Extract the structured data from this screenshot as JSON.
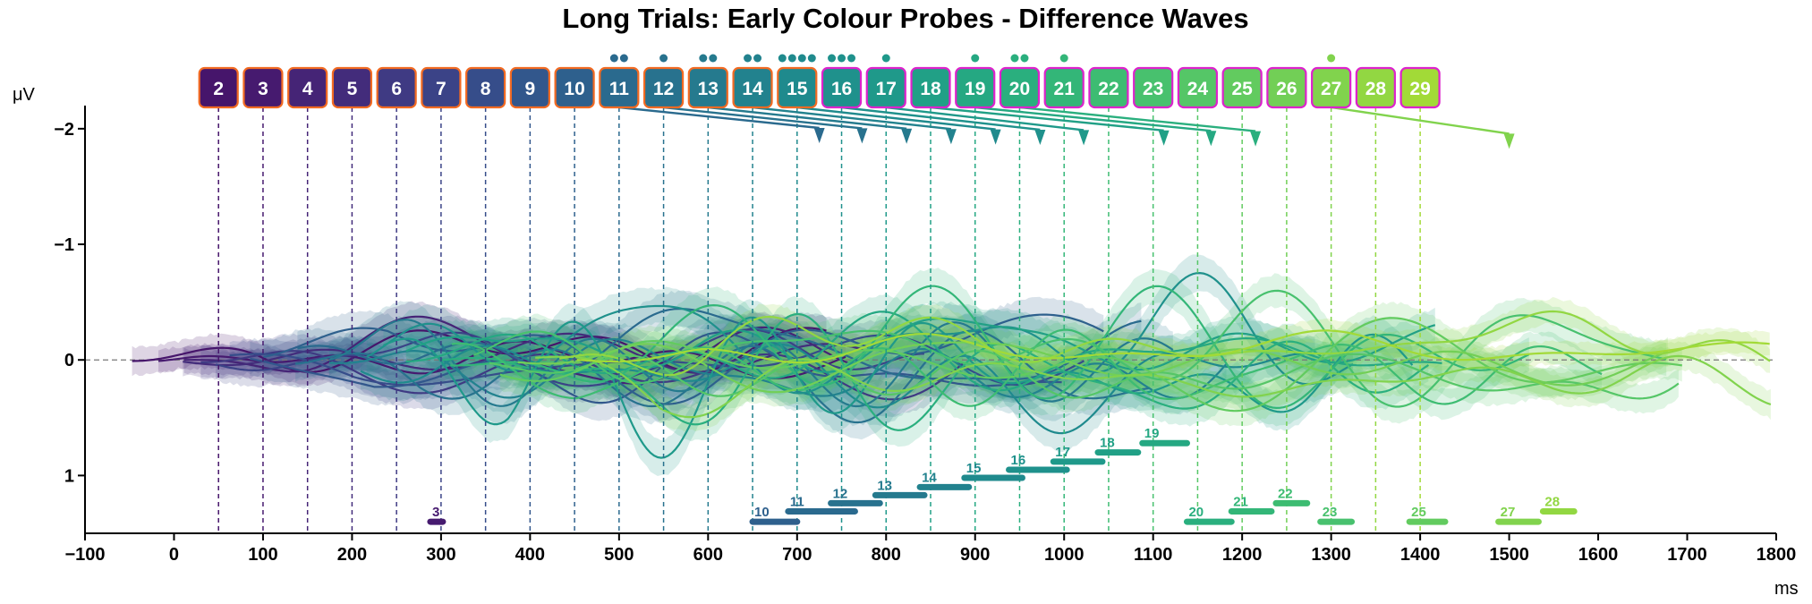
{
  "chart_data": {
    "type": "line",
    "title": "Long Trials: Early Colour Probes - Difference Waves",
    "xlabel": "ms",
    "ylabel": "μV",
    "xlim": [
      -100,
      1800
    ],
    "ylim": [
      1.5,
      -2.2
    ],
    "y_inverted": true,
    "xticks": [
      -100,
      0,
      100,
      200,
      300,
      400,
      500,
      600,
      700,
      800,
      900,
      1000,
      1100,
      1200,
      1300,
      1400,
      1500,
      1600,
      1700,
      1800
    ],
    "yticks": [
      -2,
      -1,
      0,
      1
    ],
    "ytick_labels": [
      "−2",
      "−1",
      "0",
      "1"
    ],
    "grid": false,
    "probes": [
      {
        "n": 2,
        "onset": 50,
        "color": "#46156b",
        "border": "#f26a22",
        "dots": 0,
        "lag_end": null
      },
      {
        "n": 3,
        "onset": 100,
        "color": "#461a6f",
        "border": "#f26a22",
        "dots": 0,
        "lag_end": null
      },
      {
        "n": 4,
        "onset": 150,
        "color": "#452476",
        "border": "#f26a22",
        "dots": 0,
        "lag_end": null
      },
      {
        "n": 5,
        "onset": 200,
        "color": "#432c7b",
        "border": "#f26a22",
        "dots": 0,
        "lag_end": null
      },
      {
        "n": 6,
        "onset": 250,
        "color": "#3f3a83",
        "border": "#f26a22",
        "dots": 0,
        "lag_end": null
      },
      {
        "n": 7,
        "onset": 300,
        "color": "#3b4387",
        "border": "#f26a22",
        "dots": 0,
        "lag_end": null
      },
      {
        "n": 8,
        "onset": 350,
        "color": "#364d8a",
        "border": "#f26a22",
        "dots": 0,
        "lag_end": null
      },
      {
        "n": 9,
        "onset": 400,
        "color": "#32578c",
        "border": "#f26a22",
        "dots": 0,
        "lag_end": null
      },
      {
        "n": 10,
        "onset": 450,
        "color": "#2e608d",
        "border": "#f26a22",
        "dots": 0,
        "lag_end": null
      },
      {
        "n": 11,
        "onset": 500,
        "color": "#2a6a8e",
        "border": "#f26a22",
        "dots": 2,
        "lag_end": 725
      },
      {
        "n": 12,
        "onset": 550,
        "color": "#28728e",
        "border": "#f26a22",
        "dots": 1,
        "lag_end": 773
      },
      {
        "n": 13,
        "onset": 600,
        "color": "#257a8e",
        "border": "#f26a22",
        "dots": 2,
        "lag_end": 823
      },
      {
        "n": 14,
        "onset": 650,
        "color": "#22828e",
        "border": "#f26a22",
        "dots": 2,
        "lag_end": 873
      },
      {
        "n": 15,
        "onset": 700,
        "color": "#1f8a8d",
        "border": "#f26a22",
        "dots": 4,
        "lag_end": 923
      },
      {
        "n": 16,
        "onset": 750,
        "color": "#1f918c",
        "border": "#dd22cc",
        "dots": 3,
        "lag_end": 973
      },
      {
        "n": 17,
        "onset": 800,
        "color": "#1f998a",
        "border": "#dd22cc",
        "dots": 1,
        "lag_end": 1022
      },
      {
        "n": 18,
        "onset": 850,
        "color": "#21a086",
        "border": "#dd22cc",
        "dots": 0,
        "lag_end": 1112
      },
      {
        "n": 19,
        "onset": 900,
        "color": "#25a882",
        "border": "#dd22cc",
        "dots": 1,
        "lag_end": 1165
      },
      {
        "n": 20,
        "onset": 950,
        "color": "#2aaf7e",
        "border": "#dd22cc",
        "dots": 2,
        "lag_end": 1215
      },
      {
        "n": 21,
        "onset": 1000,
        "color": "#33b678",
        "border": "#dd22cc",
        "dots": 1,
        "lag_end": null
      },
      {
        "n": 22,
        "onset": 1050,
        "color": "#3dbc72",
        "border": "#dd22cc",
        "dots": 0,
        "lag_end": null
      },
      {
        "n": 23,
        "onset": 1100,
        "color": "#48c16e",
        "border": "#dd22cc",
        "dots": 0,
        "lag_end": null
      },
      {
        "n": 24,
        "onset": 1150,
        "color": "#55c667",
        "border": "#dd22cc",
        "dots": 0,
        "lag_end": null
      },
      {
        "n": 25,
        "onset": 1200,
        "color": "#62cb5f",
        "border": "#dd22cc",
        "dots": 0,
        "lag_end": null
      },
      {
        "n": 26,
        "onset": 1250,
        "color": "#72cf56",
        "border": "#dd22cc",
        "dots": 0,
        "lag_end": null
      },
      {
        "n": 27,
        "onset": 1300,
        "color": "#81d34d",
        "border": "#dd22cc",
        "dots": 1,
        "lag_end": 1500
      },
      {
        "n": 28,
        "onset": 1350,
        "color": "#92d742",
        "border": "#dd22cc",
        "dots": 0,
        "lag_end": null
      },
      {
        "n": 29,
        "onset": 1400,
        "color": "#a2da37",
        "border": "#dd22cc",
        "dots": 0,
        "lag_end": null
      }
    ],
    "significance_bars": [
      {
        "label": "3",
        "start": 288,
        "end": 302,
        "y": 1.4,
        "color": "#461a6f"
      },
      {
        "label": "10",
        "start": 650,
        "end": 700,
        "y": 1.4,
        "color": "#2e608d"
      },
      {
        "label": "11",
        "start": 690,
        "end": 765,
        "y": 1.31,
        "color": "#2a6a8e"
      },
      {
        "label": "12",
        "start": 738,
        "end": 793,
        "y": 1.24,
        "color": "#28728e"
      },
      {
        "label": "13",
        "start": 788,
        "end": 843,
        "y": 1.17,
        "color": "#257a8e"
      },
      {
        "label": "14",
        "start": 838,
        "end": 893,
        "y": 1.1,
        "color": "#22828e"
      },
      {
        "label": "15",
        "start": 888,
        "end": 953,
        "y": 1.02,
        "color": "#1f8a8d"
      },
      {
        "label": "16",
        "start": 938,
        "end": 1003,
        "y": 0.95,
        "color": "#1f918c"
      },
      {
        "label": "17",
        "start": 988,
        "end": 1043,
        "y": 0.88,
        "color": "#1f998a"
      },
      {
        "label": "18",
        "start": 1038,
        "end": 1083,
        "y": 0.8,
        "color": "#21a086"
      },
      {
        "label": "19",
        "start": 1088,
        "end": 1138,
        "y": 0.72,
        "color": "#25a882"
      },
      {
        "label": "20",
        "start": 1138,
        "end": 1188,
        "y": 1.4,
        "color": "#2aaf7e"
      },
      {
        "label": "21",
        "start": 1188,
        "end": 1233,
        "y": 1.31,
        "color": "#33b678"
      },
      {
        "label": "22",
        "start": 1238,
        "end": 1273,
        "y": 1.24,
        "color": "#3dbc72"
      },
      {
        "label": "23",
        "start": 1288,
        "end": 1323,
        "y": 1.4,
        "color": "#48c16e"
      },
      {
        "label": "25",
        "start": 1388,
        "end": 1428,
        "y": 1.4,
        "color": "#62cb5f"
      },
      {
        "label": "27",
        "start": 1488,
        "end": 1533,
        "y": 1.4,
        "color": "#81d34d"
      },
      {
        "label": "28",
        "start": 1538,
        "end": 1573,
        "y": 1.31,
        "color": "#92d742"
      }
    ],
    "wave_start_ms": -50,
    "wave_end_ms": 1795,
    "wave_color_order": [
      2,
      3,
      4,
      5,
      6,
      7,
      8,
      9,
      10,
      11,
      12,
      13,
      14,
      15,
      16,
      17,
      18,
      19,
      20,
      21,
      22,
      23,
      24,
      25,
      26,
      27,
      28,
      29
    ]
  }
}
